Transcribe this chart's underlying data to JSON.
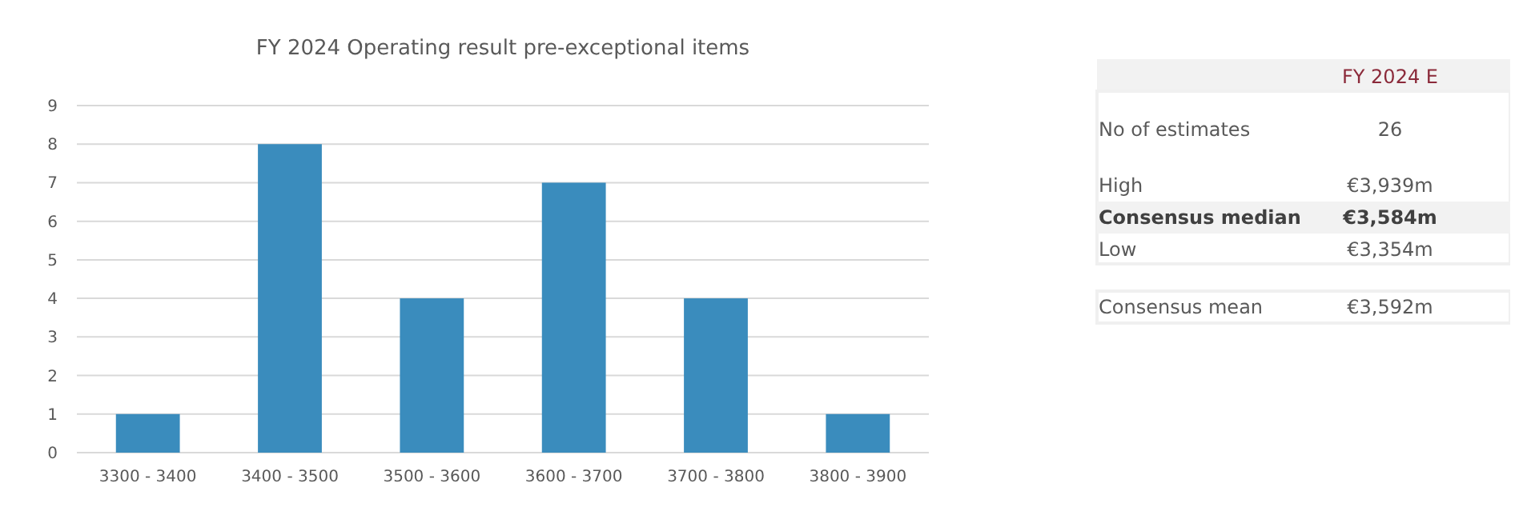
{
  "chart_data": [
    {
      "type": "bar",
      "title": "FY 2024 Operating result pre-exceptional items",
      "categories": [
        "3300 - 3400",
        "3400 - 3500",
        "3500 - 3600",
        "3600 - 3700",
        "3700 - 3800",
        "3800 - 3900"
      ],
      "values": [
        1,
        8,
        4,
        7,
        4,
        1
      ],
      "color": "#3a8cbd",
      "ylim": [
        0,
        9
      ],
      "yticks": [
        0,
        1,
        2,
        3,
        4,
        5,
        6,
        7,
        8,
        9
      ],
      "grid": "y"
    },
    {
      "type": "other",
      "title": "FY 2024 E",
      "annotations": [
        "No of estimates",
        "26",
        "High",
        "€3,939m",
        "Consensus median",
        "€3,584m",
        "Low",
        "€3,354m",
        "Consensus mean",
        "€3,592m"
      ]
    }
  ]
}
